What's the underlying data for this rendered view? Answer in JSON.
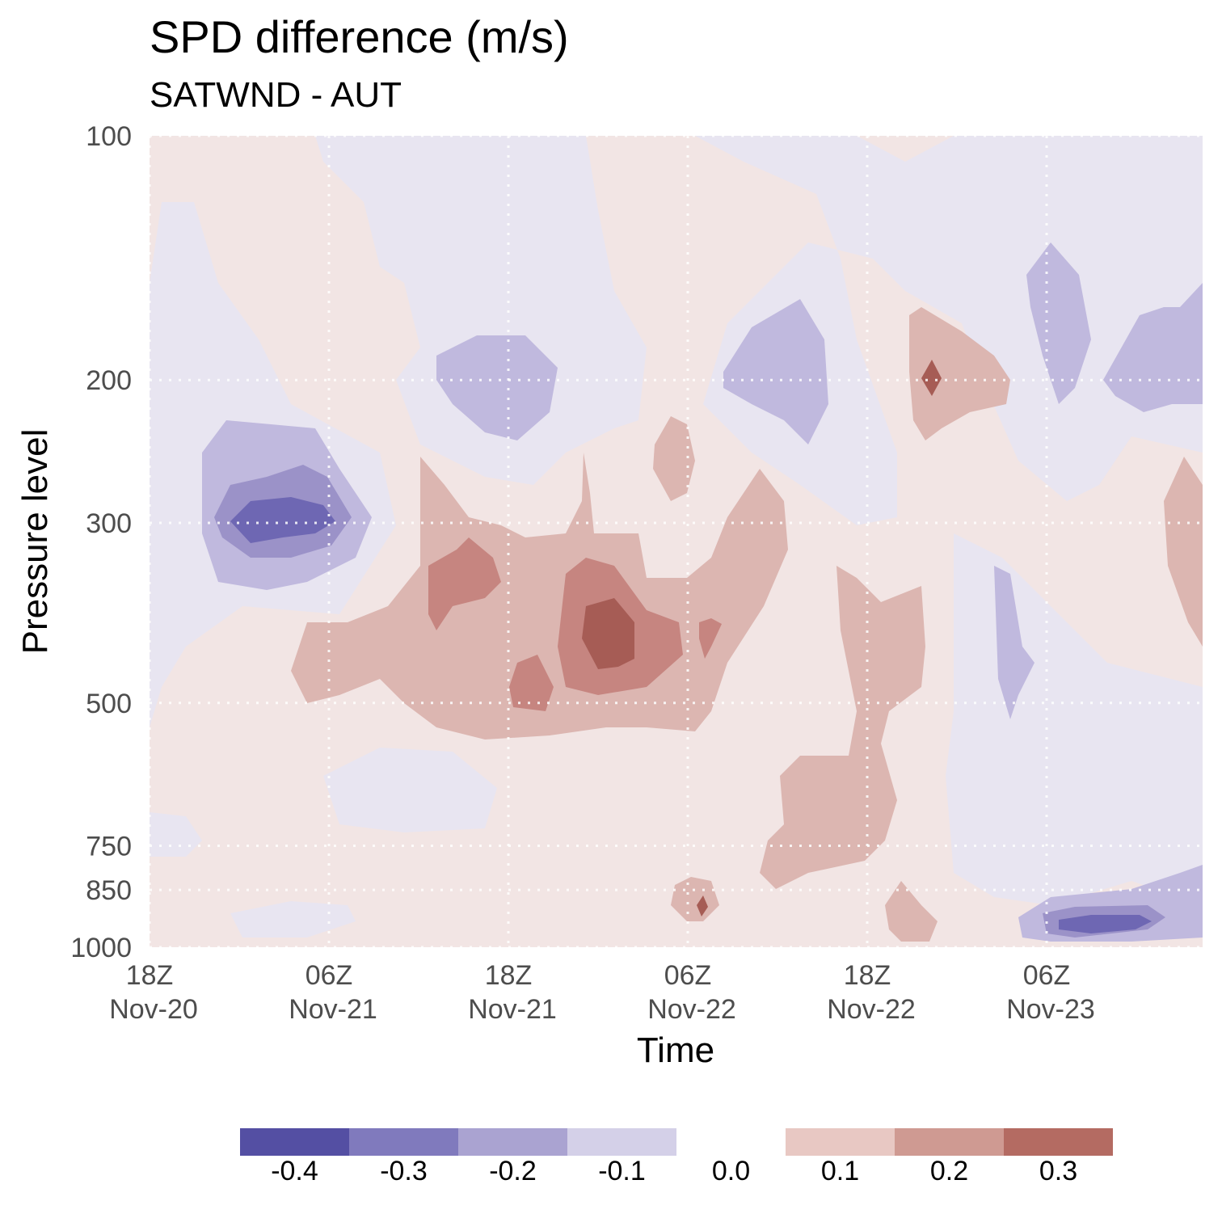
{
  "chart_data": {
    "type": "heatmap",
    "title": "SPD difference (m/s)",
    "subtitle": "SATWND - AUT",
    "xlabel": "Time",
    "ylabel": "Pressure level",
    "x_ticks": [
      {
        "line1": "18Z",
        "line2": "Nov-20",
        "hours": 0
      },
      {
        "line1": "06Z",
        "line2": "Nov-21",
        "hours": 12
      },
      {
        "line1": "18Z",
        "line2": "Nov-21",
        "hours": 24
      },
      {
        "line1": "06Z",
        "line2": "Nov-22",
        "hours": 36
      },
      {
        "line1": "18Z",
        "line2": "Nov-22",
        "hours": 48
      },
      {
        "line1": "06Z",
        "line2": "Nov-23",
        "hours": 60
      }
    ],
    "x_range_hours": [
      0,
      70
    ],
    "y_ticks": [
      100,
      200,
      300,
      500,
      750,
      850,
      1000
    ],
    "y_scale": "log-reversed",
    "ylim": [
      100,
      1000
    ],
    "colorbar": {
      "negative": [
        {
          "label": "-0.4",
          "color": "#544fa3"
        },
        {
          "label": "-0.3",
          "color": "#807abd"
        },
        {
          "label": "-0.2",
          "color": "#aaa3d1"
        },
        {
          "label": "-0.1",
          "color": "#d4d0e8"
        }
      ],
      "zero_label": "0.0",
      "positive": [
        {
          "label": "0.1",
          "color": "#e8c8c3"
        },
        {
          "label": "0.2",
          "color": "#cf9a92"
        },
        {
          "label": "0.3",
          "color": "#b46b62"
        }
      ]
    },
    "field_colors": {
      "background": "#f2e5e4",
      "neg_01": "#e8e5f1",
      "neg_02": "#c0b9de",
      "neg_03": "#9b92c8",
      "neg_04": "#6e67b3",
      "pos_01": "#dcb6b1",
      "pos_02": "#c68580",
      "pos_03": "#a65c55"
    },
    "regions": [
      {
        "sign": "neg",
        "level": 1,
        "center_hours": 7,
        "pressure_range": [
          185,
          750
        ]
      },
      {
        "sign": "neg",
        "level": 4,
        "center_hours": 9,
        "pressure_range": [
          285,
          315
        ]
      },
      {
        "sign": "neg",
        "level": 2,
        "center_hours": 24,
        "pressure_range": [
          180,
          225
        ]
      },
      {
        "sign": "neg",
        "level": 2,
        "center_hours": 42,
        "pressure_range": [
          170,
          235
        ]
      },
      {
        "sign": "neg",
        "level": 2,
        "center_hours": 65,
        "pressure_range": [
          150,
          215
        ]
      },
      {
        "sign": "neg",
        "level": 3,
        "center_hours": 63,
        "pressure_range": [
          950,
          1000
        ]
      },
      {
        "sign": "pos",
        "level": 3,
        "center_hours": 31,
        "pressure_range": [
          370,
          450
        ]
      },
      {
        "sign": "pos",
        "level": 2,
        "center_hours": 28,
        "pressure_range": [
          290,
          520
        ]
      },
      {
        "sign": "pos",
        "level": 1,
        "center_hours": 51,
        "pressure_range": [
          350,
          900
        ]
      },
      {
        "sign": "pos",
        "level": 2,
        "center_hours": 52,
        "pressure_range": [
          190,
          215
        ]
      }
    ]
  }
}
